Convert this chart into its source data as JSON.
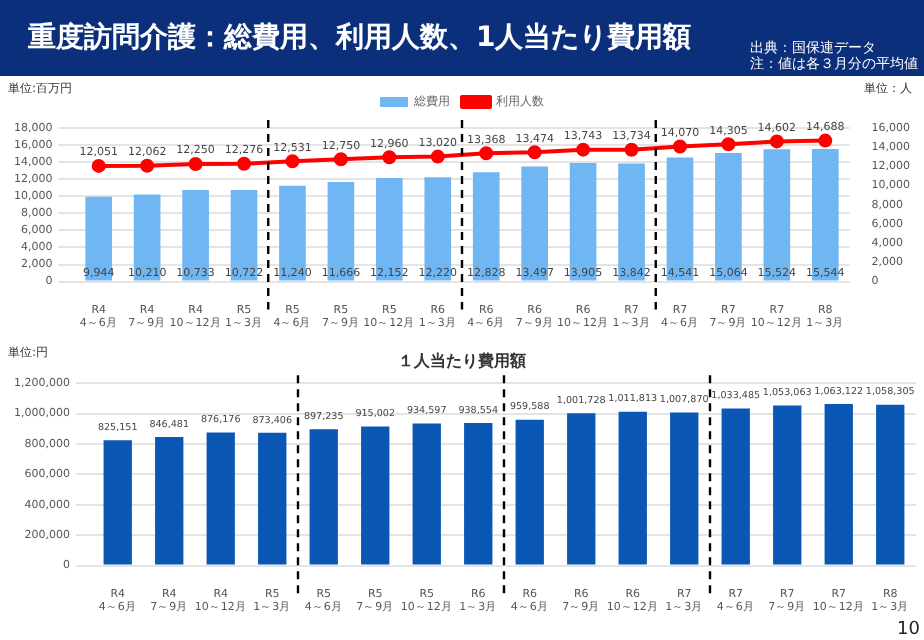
{
  "chart_data": [
    {
      "type": "bar",
      "title": "重度訪問介護：総費用、利用人数、1人当たり費用額",
      "ylabel": "単位:百万円",
      "y2label": "単位：人",
      "annotations": [
        "出典：国保連データ",
        "注：値は各３月分の平均値"
      ],
      "categories": [
        "R4\n4～6月",
        "R4\n7～9月",
        "R4\n10～12月",
        "R5\n1～3月",
        "R5\n4～6月",
        "R5\n7～9月",
        "R5\n10～12月",
        "R6\n1～3月",
        "R6\n4～6月",
        "R6\n7～9月",
        "R6\n10～12月",
        "R7\n1～3月",
        "R7\n4～6月",
        "R7\n7～9月",
        "R7\n10～12月",
        "R8\n1～3月"
      ],
      "series": [
        {
          "name": "総費用",
          "type": "bar",
          "color": "#6fb6f2",
          "values": [
            9944,
            10210,
            10733,
            10722,
            11240,
            11666,
            12152,
            12220,
            12828,
            13497,
            13905,
            13842,
            14541,
            15064,
            15524,
            15544
          ],
          "value_labels": [
            "9,944",
            "10,210",
            "10,733",
            "10,722",
            "11,240",
            "11,666",
            "12,152",
            "12,220",
            "12,828",
            "13,497",
            "13,905",
            "13,842",
            "14,541",
            "15,064",
            "15,524",
            "15,544"
          ]
        },
        {
          "name": "利用人数",
          "type": "line",
          "axis": "y2",
          "color": "#ff0000",
          "values": [
            12051,
            12062,
            12250,
            12276,
            12531,
            12750,
            12960,
            13020,
            13368,
            13474,
            13743,
            13734,
            14070,
            14305,
            14602,
            14688
          ],
          "value_labels": [
            "12,051",
            "12,062",
            "12,250",
            "12,276",
            "12,531",
            "12,750",
            "12,960",
            "13,020",
            "13,368",
            "13,474",
            "13,743",
            "13,734",
            "14,070",
            "14,305",
            "14,602",
            "14,688"
          ]
        }
      ],
      "ylim": [
        0,
        18000
      ],
      "yticks": [
        0,
        {
          "value": 2000,
          "label": "2,000"
        },
        {
          "value": 4000,
          "label": "4,000"
        },
        {
          "value": 6000,
          "label": "6,000"
        },
        {
          "value": 8000,
          "label": "8,000"
        },
        {
          "value": 10000,
          "label": "10,000"
        },
        {
          "value": 12000,
          "label": "12,000"
        },
        {
          "value": 14000,
          "label": "14,000"
        },
        {
          "value": 16000,
          "label": "16,000"
        },
        {
          "value": 18000,
          "label": "18,000"
        }
      ],
      "y2lim": [
        0,
        16000
      ],
      "y2ticks": [
        0,
        {
          "value": 2000,
          "label": "2,000"
        },
        {
          "value": 4000,
          "label": "4,000"
        },
        {
          "value": 6000,
          "label": "6,000"
        },
        {
          "value": 8000,
          "label": "8,000"
        },
        {
          "value": 10000,
          "label": "10,000"
        },
        {
          "value": 12000,
          "label": "12,000"
        },
        {
          "value": 14000,
          "label": "14,000"
        },
        {
          "value": 16000,
          "label": "16,000"
        }
      ],
      "grid": "y",
      "legend": "top",
      "marker": "circle",
      "line_style": "solid"
    },
    {
      "type": "bar",
      "title": "１人当たり費用額",
      "ylabel": "単位:円",
      "annotations": [
        "10"
      ],
      "categories": [
        "R4\n4～6月",
        "R4\n7～9月",
        "R4\n10～12月",
        "R5\n1～3月",
        "R5\n4～6月",
        "R5\n7～9月",
        "R5\n10～12月",
        "R6\n1～3月",
        "R6\n4～6月",
        "R6\n7～9月",
        "R6\n10～12月",
        "R7\n1～3月",
        "R7\n4～6月",
        "R7\n7～9月",
        "R7\n10～12月",
        "R8\n1～3月"
      ],
      "series": [
        {
          "color": "#0a58b4",
          "values": [
            825151,
            846481,
            876176,
            873406,
            897235,
            915002,
            934597,
            938554,
            959588,
            1001728,
            1011813,
            1007870,
            1033485,
            1053063,
            1063122,
            1058305
          ],
          "value_labels": [
            "825,151",
            "846,481",
            "876,176",
            "873,406",
            "897,235",
            "915,002",
            "934,597",
            "938,554",
            "959,588",
            "1,001,728",
            "1,011,813",
            "1,007,870",
            "1,033,485",
            "1,053,063",
            "1,063,122",
            "1,058,305"
          ]
        }
      ],
      "ylim": [
        0,
        1200000
      ],
      "yticks": [
        0,
        {
          "value": 200000,
          "label": "200,000"
        },
        {
          "value": 400000,
          "label": "400,000"
        },
        {
          "value": 600000,
          "label": "600,000"
        },
        {
          "value": 800000,
          "label": "800,000"
        },
        {
          "value": 1000000,
          "label": "1,000,000"
        },
        {
          "value": 1200000,
          "label": "1,200,000"
        }
      ],
      "grid": "y",
      "legend": false
    }
  ]
}
